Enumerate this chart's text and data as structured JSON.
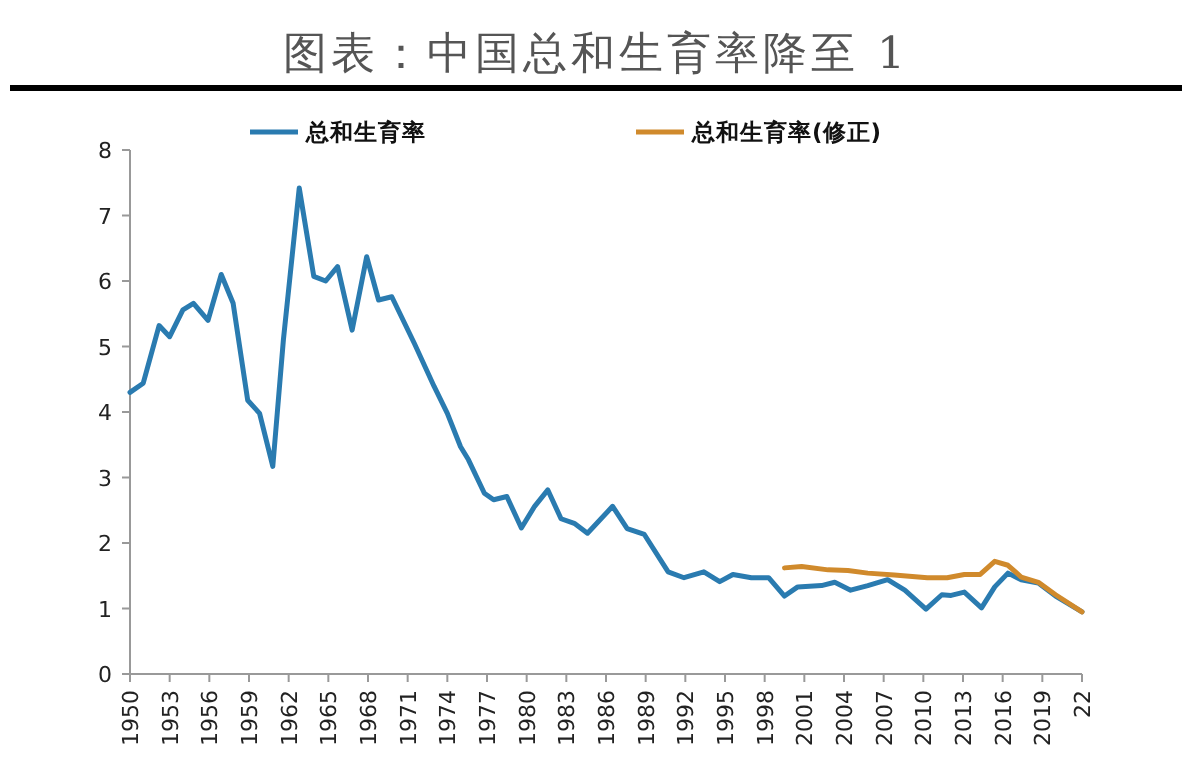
{
  "chart_data": {
    "type": "line",
    "title": "图表：中国总和生育率降至 1",
    "series": [
      {
        "name": "总和生育率",
        "color": "#2a7bb0",
        "x": [
          1950,
          1951,
          1952.2,
          1953,
          1954,
          1954.8,
          1955.9,
          1956.9,
          1957.8,
          1958.9,
          1959.8,
          1960.8,
          1961.6,
          1962.8,
          1963.9,
          1964.8,
          1965.7,
          1966.8,
          1967.9,
          1968.8,
          1969.8,
          1971.5,
          1973,
          1974,
          1975,
          1975.6,
          1976.8,
          1977.5,
          1978.5,
          1979.6,
          1980.6,
          1981.6,
          1982.6,
          1983.6,
          1984.6,
          1986.5,
          1987.6,
          1988.9,
          1990.7,
          1991.9,
          1993.4,
          1994.6,
          1995.6,
          1997,
          1998.3,
          1999.5,
          2000.5,
          2002.3,
          2003.3,
          2004.5,
          2005.8,
          2007.3,
          2008.6,
          2010.2,
          2011.4,
          2012.1,
          2013.1,
          2014.4,
          2015.4,
          2016.4,
          2017.4,
          2018.7,
          2020,
          2022
        ],
        "values": [
          4.3,
          4.44,
          5.32,
          5.15,
          5.56,
          5.66,
          5.4,
          6.1,
          5.66,
          4.18,
          3.98,
          3.17,
          5.1,
          7.42,
          6.07,
          6.0,
          6.22,
          5.25,
          6.37,
          5.71,
          5.76,
          5.05,
          4.39,
          3.98,
          3.47,
          3.27,
          2.76,
          2.66,
          2.71,
          2.23,
          2.56,
          2.81,
          2.37,
          2.3,
          2.15,
          2.56,
          2.22,
          2.13,
          1.56,
          1.47,
          1.56,
          1.41,
          1.52,
          1.47,
          1.47,
          1.19,
          1.33,
          1.35,
          1.4,
          1.28,
          1.35,
          1.44,
          1.28,
          0.99,
          1.21,
          1.2,
          1.25,
          1.01,
          1.33,
          1.54,
          1.44,
          1.39,
          1.19,
          0.95
        ]
      },
      {
        "name": "总和生育率(修正)",
        "color": "#d08a2c",
        "x": [
          1999.5,
          2000.8,
          2002.8,
          2004.3,
          2005.8,
          2007.8,
          2010.3,
          2011.8,
          2013.1,
          2014.3,
          2015.4,
          2016.4,
          2017.4,
          2018.7,
          2020,
          2022
        ],
        "values": [
          1.62,
          1.64,
          1.59,
          1.58,
          1.54,
          1.51,
          1.47,
          1.47,
          1.52,
          1.52,
          1.72,
          1.66,
          1.48,
          1.4,
          1.21,
          0.95
        ]
      }
    ],
    "xlim": [
      1950,
      2022
    ],
    "xticks": [
      1950,
      1953,
      1956,
      1959,
      1962,
      1965,
      1968,
      1971,
      1974,
      1977,
      1980,
      1983,
      1986,
      1989,
      1992,
      1995,
      1998,
      2001,
      2004,
      2007,
      2010,
      2013,
      2016,
      2019,
      {
        "value": 2022,
        "label": "22"
      }
    ],
    "ylim": [
      0,
      8
    ],
    "yticks": [
      0,
      1,
      2,
      3,
      4,
      5,
      6,
      7,
      8
    ],
    "grid": false,
    "legend": "top",
    "marker": "none",
    "line_style": "solid"
  }
}
